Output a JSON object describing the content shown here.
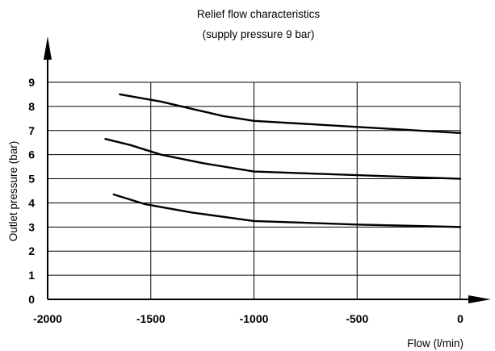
{
  "chart_data": {
    "type": "line",
    "title": "Relief flow characteristics",
    "subtitle": "(supply pressure 9 bar)",
    "xlabel": "Flow (l/min)",
    "ylabel": "Outlet pressure (bar)",
    "xlim": [
      -2000,
      0
    ],
    "ylim": [
      0,
      9
    ],
    "x_ticks": [
      -2000,
      -1500,
      -1000,
      -500,
      0
    ],
    "x_tick_labels": [
      "-2000",
      "-1500",
      "-1000",
      "-500",
      "0"
    ],
    "y_ticks": [
      0,
      1,
      2,
      3,
      4,
      5,
      6,
      7,
      8,
      9
    ],
    "y_tick_labels": [
      "0",
      "1",
      "2",
      "3",
      "4",
      "5",
      "6",
      "7",
      "8",
      "9"
    ],
    "grid": true,
    "legend": "none",
    "colors": {
      "line": "#000000",
      "grid": "#000000",
      "background": "#ffffff"
    },
    "series": [
      {
        "x": [
          -1650,
          -1450,
          -1300,
          -1150,
          -1000,
          -500,
          0
        ],
        "y": [
          8.5,
          8.2,
          7.9,
          7.6,
          7.4,
          7.15,
          6.9
        ]
      },
      {
        "x": [
          -1720,
          -1600,
          -1450,
          -1250,
          -1000,
          -500,
          0
        ],
        "y": [
          6.65,
          6.4,
          6.0,
          5.65,
          5.3,
          5.15,
          5.0
        ]
      },
      {
        "x": [
          -1680,
          -1530,
          -1300,
          -1000,
          -500,
          0
        ],
        "y": [
          4.35,
          3.95,
          3.6,
          3.25,
          3.1,
          3.0
        ]
      }
    ]
  }
}
